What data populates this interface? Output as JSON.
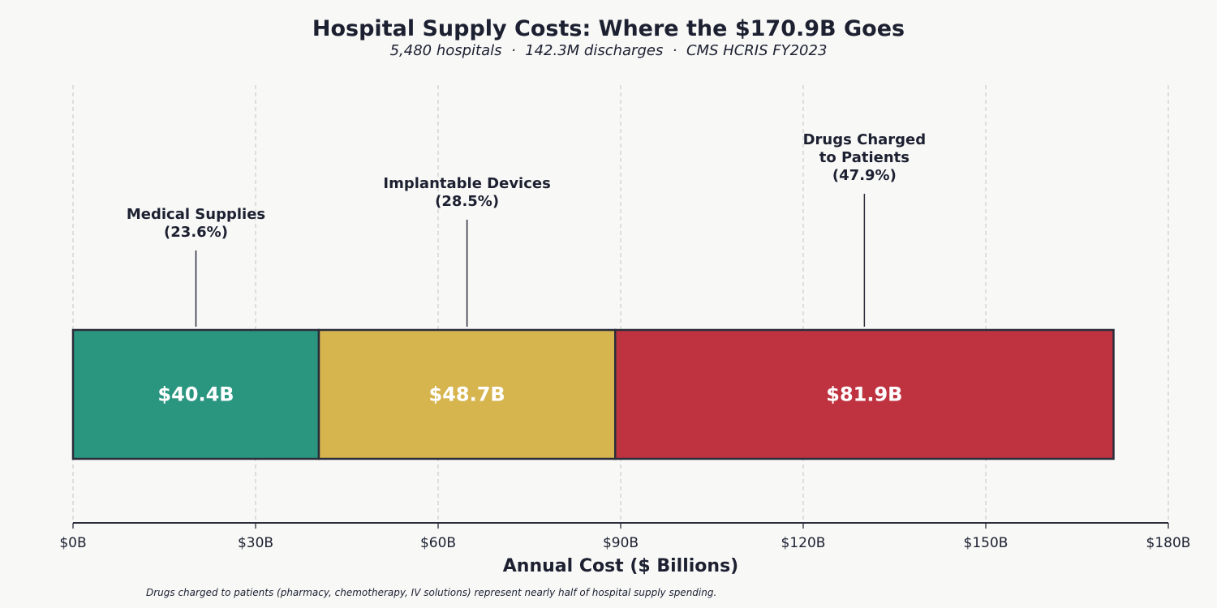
{
  "chart_data": {
    "type": "bar",
    "orientation": "horizontal-stacked",
    "title": "Hospital Supply Costs: Where the $170.9B Goes",
    "subtitle": "5,480 hospitals  ·  142.3M discharges  ·  CMS HCRIS FY2023",
    "xlabel": "Annual Cost ($ Billions)",
    "xlim": [
      0,
      180
    ],
    "xticks": [
      0,
      30,
      60,
      90,
      120,
      150,
      180
    ],
    "xtick_labels": [
      "$0B",
      "$30B",
      "$60B",
      "$90B",
      "$120B",
      "$150B",
      "$180B"
    ],
    "grid": "vertical dashed",
    "series": [
      {
        "name": "Medical Supplies",
        "value": 40.4,
        "label": "$40.4B",
        "annotation": [
          "Medical Supplies",
          "(23.6%)"
        ],
        "color": "#2a9680"
      },
      {
        "name": "Implantable Devices",
        "value": 48.7,
        "label": "$48.7B",
        "annotation": [
          "Implantable Devices",
          "(28.5%)"
        ],
        "color": "#d6b44e"
      },
      {
        "name": "Drugs Charged to Patients",
        "value": 81.9,
        "label": "$81.9B",
        "annotation": [
          "Drugs Charged",
          "to Patients",
          "(47.9%)"
        ],
        "color": "#bf3340"
      }
    ],
    "footnote": "Drugs charged to patients (pharmacy, chemotherapy, IV solutions) represent nearly half of hospital supply spending."
  }
}
